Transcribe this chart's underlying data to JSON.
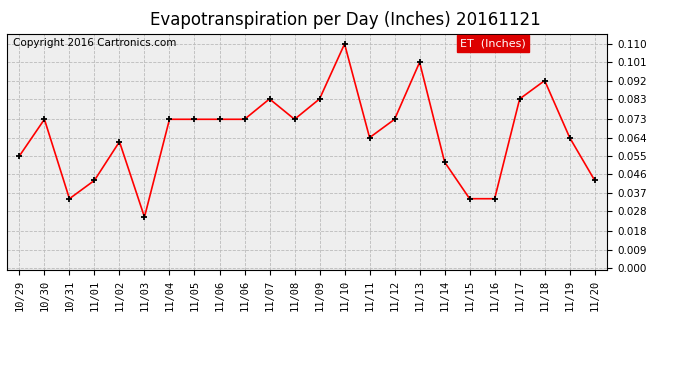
{
  "title": "Evapotranspiration per Day (Inches) 20161121",
  "copyright": "Copyright 2016 Cartronics.com",
  "legend_label": "ET  (Inches)",
  "x_labels": [
    "10/29",
    "10/30",
    "10/31",
    "11/01",
    "11/02",
    "11/03",
    "11/04",
    "11/05",
    "11/06",
    "11/06",
    "11/07",
    "11/08",
    "11/09",
    "11/10",
    "11/11",
    "11/12",
    "11/13",
    "11/14",
    "11/15",
    "11/16",
    "11/17",
    "11/18",
    "11/19",
    "11/20"
  ],
  "y_values": [
    0.055,
    0.073,
    0.034,
    0.043,
    0.062,
    0.025,
    0.073,
    0.073,
    0.073,
    0.073,
    0.083,
    0.073,
    0.083,
    0.11,
    0.064,
    0.073,
    0.101,
    0.052,
    0.034,
    0.034,
    0.083,
    0.092,
    0.064,
    0.043
  ],
  "yticks": [
    0.0,
    0.009,
    0.018,
    0.028,
    0.037,
    0.046,
    0.055,
    0.064,
    0.073,
    0.083,
    0.092,
    0.101,
    0.11
  ],
  "ylim": [
    -0.001,
    0.115
  ],
  "line_color": "red",
  "marker_color": "black",
  "bg_color": "#eeeeee",
  "legend_bg": "#dd0000",
  "legend_text_color": "#ffffff",
  "grid_color": "#bbbbbb",
  "title_fontsize": 12,
  "copyright_fontsize": 7.5,
  "tick_fontsize": 7.5,
  "legend_fontsize": 8
}
